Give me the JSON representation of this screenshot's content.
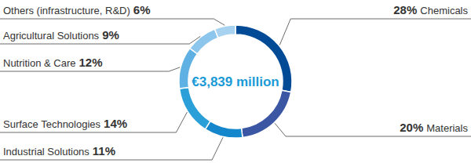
{
  "chart_data": {
    "type": "donut",
    "center_label": "€3,839 million",
    "categories": [
      "Chemicals",
      "Materials",
      "Industrial Solutions",
      "Surface Technologies",
      "Nutrition & Care",
      "Agricultural Solutions",
      "Others (infrastructure, R&D)"
    ],
    "values": [
      28,
      20,
      11,
      14,
      12,
      9,
      6
    ],
    "value_labels": [
      "28%",
      "20%",
      "11%",
      "14%",
      "12%",
      "9%",
      "6%"
    ],
    "colors": [
      "#004a96",
      "#3b57a3",
      "#1487cc",
      "#2a9fd8",
      "#5fb0e3",
      "#8cc6ec",
      "#a8d3f0"
    ],
    "data_labels": true
  }
}
